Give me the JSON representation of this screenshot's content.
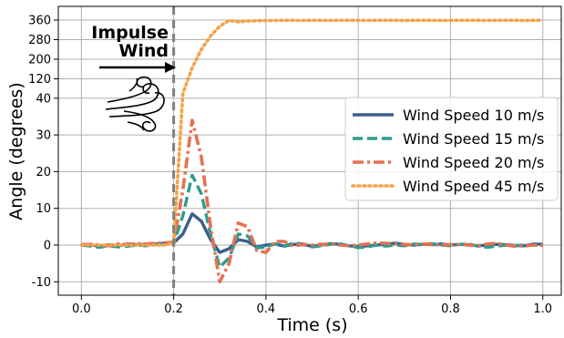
{
  "chart_data": {
    "type": "line",
    "xlabel": "Time (s)",
    "ylabel": "Angle (degrees)",
    "xlim": [
      -0.05,
      1.04
    ],
    "y_scale": "piecewise: linear from -10 to 40, compressed from 40 to 360",
    "ylim": [
      -13,
      370
    ],
    "x_ticks": [
      0.0,
      0.2,
      0.4,
      0.6,
      0.8,
      1.0
    ],
    "x_tick_labels": [
      "0.0",
      "0.2",
      "0.4",
      "0.6",
      "0.8",
      "1.0"
    ],
    "y_ticks": [
      -10,
      0,
      10,
      20,
      30,
      40,
      120,
      200,
      280,
      360
    ],
    "y_tick_labels": [
      "-10",
      "0",
      "10",
      "20",
      "30",
      "40",
      "120",
      "200",
      "280",
      "360"
    ],
    "grid": true,
    "legend_position": "center-right",
    "annotation": {
      "text_line1": "Impulse",
      "text_line2": "Wind",
      "impulse_time": 0.2,
      "icon": "wind-swirl-icon"
    },
    "series": [
      {
        "name": "Wind Speed 10 m/s",
        "color": "#3a5f8a",
        "style": "solid",
        "x": [
          0.0,
          0.02,
          0.04,
          0.06,
          0.08,
          0.1,
          0.12,
          0.14,
          0.16,
          0.18,
          0.2,
          0.22,
          0.24,
          0.26,
          0.28,
          0.3,
          0.32,
          0.34,
          0.36,
          0.38,
          0.4,
          0.42,
          0.44,
          0.46,
          0.48,
          0.5,
          0.52,
          0.54,
          0.56,
          0.58,
          0.6,
          0.62,
          0.64,
          0.66,
          0.68,
          0.7,
          0.72,
          0.74,
          0.76,
          0.78,
          0.8,
          0.82,
          0.84,
          0.86,
          0.88,
          0.9,
          0.92,
          0.94,
          0.96,
          0.98,
          1.0
        ],
        "y": [
          0.2,
          0.0,
          -0.3,
          0.1,
          -0.2,
          0.3,
          0.1,
          0.2,
          0.3,
          0.5,
          0.6,
          3.0,
          8.5,
          6.5,
          1.5,
          -2.0,
          -1.0,
          1.5,
          1.0,
          -0.5,
          0.0,
          0.3,
          -0.3,
          0.2,
          0.1,
          -0.3,
          0.0,
          0.4,
          0.2,
          -0.2,
          -0.4,
          -0.2,
          0.0,
          0.3,
          0.5,
          0.2,
          0.0,
          0.2,
          0.1,
          0.3,
          0.0,
          0.2,
          0.1,
          -0.2,
          0.0,
          0.2,
          0.1,
          -0.1,
          -0.2,
          0.3,
          0.2
        ]
      },
      {
        "name": "Wind Speed 15 m/s",
        "color": "#2a9d8f",
        "style": "dashed",
        "x": [
          0.0,
          0.02,
          0.04,
          0.06,
          0.08,
          0.1,
          0.12,
          0.14,
          0.16,
          0.18,
          0.2,
          0.22,
          0.24,
          0.26,
          0.28,
          0.3,
          0.32,
          0.34,
          0.36,
          0.38,
          0.4,
          0.42,
          0.44,
          0.46,
          0.48,
          0.5,
          0.52,
          0.54,
          0.56,
          0.58,
          0.6,
          0.62,
          0.64,
          0.66,
          0.68,
          0.7,
          0.72,
          0.74,
          0.76,
          0.78,
          0.8,
          0.82,
          0.84,
          0.86,
          0.88,
          0.9,
          0.92,
          0.94,
          0.96,
          0.98,
          1.0
        ],
        "y": [
          0.0,
          -0.3,
          -0.6,
          -0.2,
          -0.5,
          -0.3,
          0.0,
          -0.2,
          0.2,
          0.3,
          0.5,
          8.0,
          19.0,
          14.0,
          3.0,
          -6.0,
          -3.5,
          3.0,
          2.5,
          -0.8,
          -0.5,
          0.3,
          -0.3,
          0.6,
          0.3,
          -0.5,
          -0.2,
          0.2,
          0.4,
          -0.2,
          -0.7,
          -0.5,
          0.0,
          -0.3,
          0.0,
          -0.2,
          0.3,
          0.2,
          0.4,
          0.0,
          -0.2,
          0.2,
          0.3,
          -0.3,
          -0.6,
          -0.3,
          0.0,
          -0.2,
          0.1,
          0.0,
          0.2
        ]
      },
      {
        "name": "Wind Speed 20 m/s",
        "color": "#e76f51",
        "style": "dashdot",
        "x": [
          0.0,
          0.02,
          0.04,
          0.06,
          0.08,
          0.1,
          0.12,
          0.14,
          0.16,
          0.18,
          0.2,
          0.22,
          0.24,
          0.26,
          0.28,
          0.3,
          0.32,
          0.34,
          0.36,
          0.38,
          0.4,
          0.42,
          0.44,
          0.46,
          0.48,
          0.5,
          0.52,
          0.54,
          0.56,
          0.58,
          0.6,
          0.62,
          0.64,
          0.66,
          0.68,
          0.7,
          0.72,
          0.74,
          0.76,
          0.78,
          0.8,
          0.82,
          0.84,
          0.86,
          0.88,
          0.9,
          0.92,
          0.94,
          0.96,
          0.98,
          1.0
        ],
        "y": [
          0.1,
          0.2,
          0.0,
          -0.2,
          0.3,
          0.2,
          0.4,
          0.3,
          0.5,
          0.6,
          0.8,
          15.0,
          34.0,
          24.0,
          5.0,
          -10.0,
          -5.0,
          6.0,
          5.0,
          -1.5,
          -2.0,
          1.0,
          1.0,
          -0.3,
          0.2,
          0.0,
          0.2,
          0.3,
          0.0,
          -0.2,
          0.0,
          0.3,
          0.6,
          0.5,
          0.3,
          0.2,
          0.0,
          0.3,
          0.2,
          0.0,
          0.1,
          0.2,
          0.0,
          -0.2,
          0.3,
          0.5,
          0.0,
          -0.3,
          -0.2,
          0.0,
          -0.1
        ]
      },
      {
        "name": "Wind Speed 45 m/s",
        "color": "#f4a24a",
        "style": "dotted",
        "x": [
          0.0,
          0.02,
          0.04,
          0.06,
          0.08,
          0.1,
          0.12,
          0.14,
          0.16,
          0.18,
          0.2,
          0.22,
          0.24,
          0.26,
          0.28,
          0.3,
          0.32,
          0.34,
          0.36,
          0.38,
          0.4,
          0.42,
          0.44,
          0.46,
          0.48,
          0.5,
          0.52,
          0.54,
          0.56,
          0.58,
          0.6,
          0.62,
          0.64,
          0.66,
          0.68,
          0.7,
          0.72,
          0.74,
          0.76,
          0.78,
          0.8,
          0.82,
          0.84,
          0.86,
          0.88,
          0.9,
          0.92,
          0.94,
          0.96,
          0.98,
          1.0
        ],
        "y": [
          0.0,
          0.0,
          0.0,
          0.0,
          0.0,
          0.0,
          0.0,
          0.0,
          0.0,
          0.0,
          0.5,
          60.0,
          165.0,
          240.0,
          295.0,
          335.0,
          358.0,
          353.0,
          356.0,
          357.0,
          358.0,
          358.0,
          359.0,
          359.0,
          358.0,
          359.0,
          359.0,
          358.0,
          359.0,
          359.0,
          359.0,
          358.0,
          359.0,
          359.0,
          359.0,
          358.0,
          359.0,
          359.0,
          359.0,
          358.0,
          359.0,
          359.0,
          359.0,
          359.0,
          358.0,
          359.0,
          359.0,
          359.0,
          358.0,
          359.0,
          359.0
        ]
      }
    ]
  }
}
